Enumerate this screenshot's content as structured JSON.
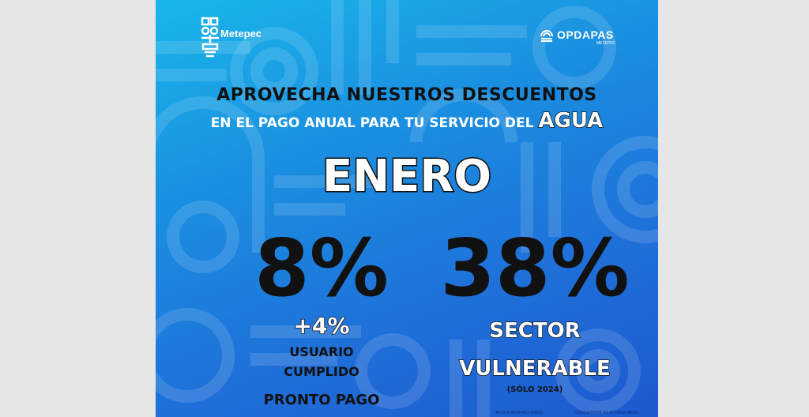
{
  "colors": {
    "page_background": "#e6e6e6",
    "poster_gradient_top": "#19b6ea",
    "poster_gradient_bottom": "#1c59cf",
    "text_dark": "#111111",
    "text_light": "#ffffff"
  },
  "logos": {
    "left": {
      "icon": "metepec-logo-icon",
      "text": "Metepec"
    },
    "right": {
      "icon": "opdapas-drop-icon",
      "text": "OPDAPAS",
      "subtext": "METEPEC"
    }
  },
  "headline": {
    "line1": "APROVECHA NUESTROS DESCUENTOS",
    "line2": "EN EL PAGO ANUAL PARA TU SERVICIO DEL",
    "highlight": "AGUA"
  },
  "month": "ENERO",
  "discounts": {
    "left": {
      "percent": "8%",
      "bonus": "+4%",
      "label_line1": "USUARIO",
      "label_line2": "CUMPLIDO",
      "footer": "PRONTO PAGO"
    },
    "right": {
      "percent": "38%",
      "label_line1": "SECTOR",
      "label_line2": "VULNERABLE",
      "note": "(SÓLO 2024)"
    }
  },
  "fine_print": {
    "left": "APLICA RESTRICCIONES",
    "right": "DESCUENTOS NO ACUMULABLES"
  }
}
